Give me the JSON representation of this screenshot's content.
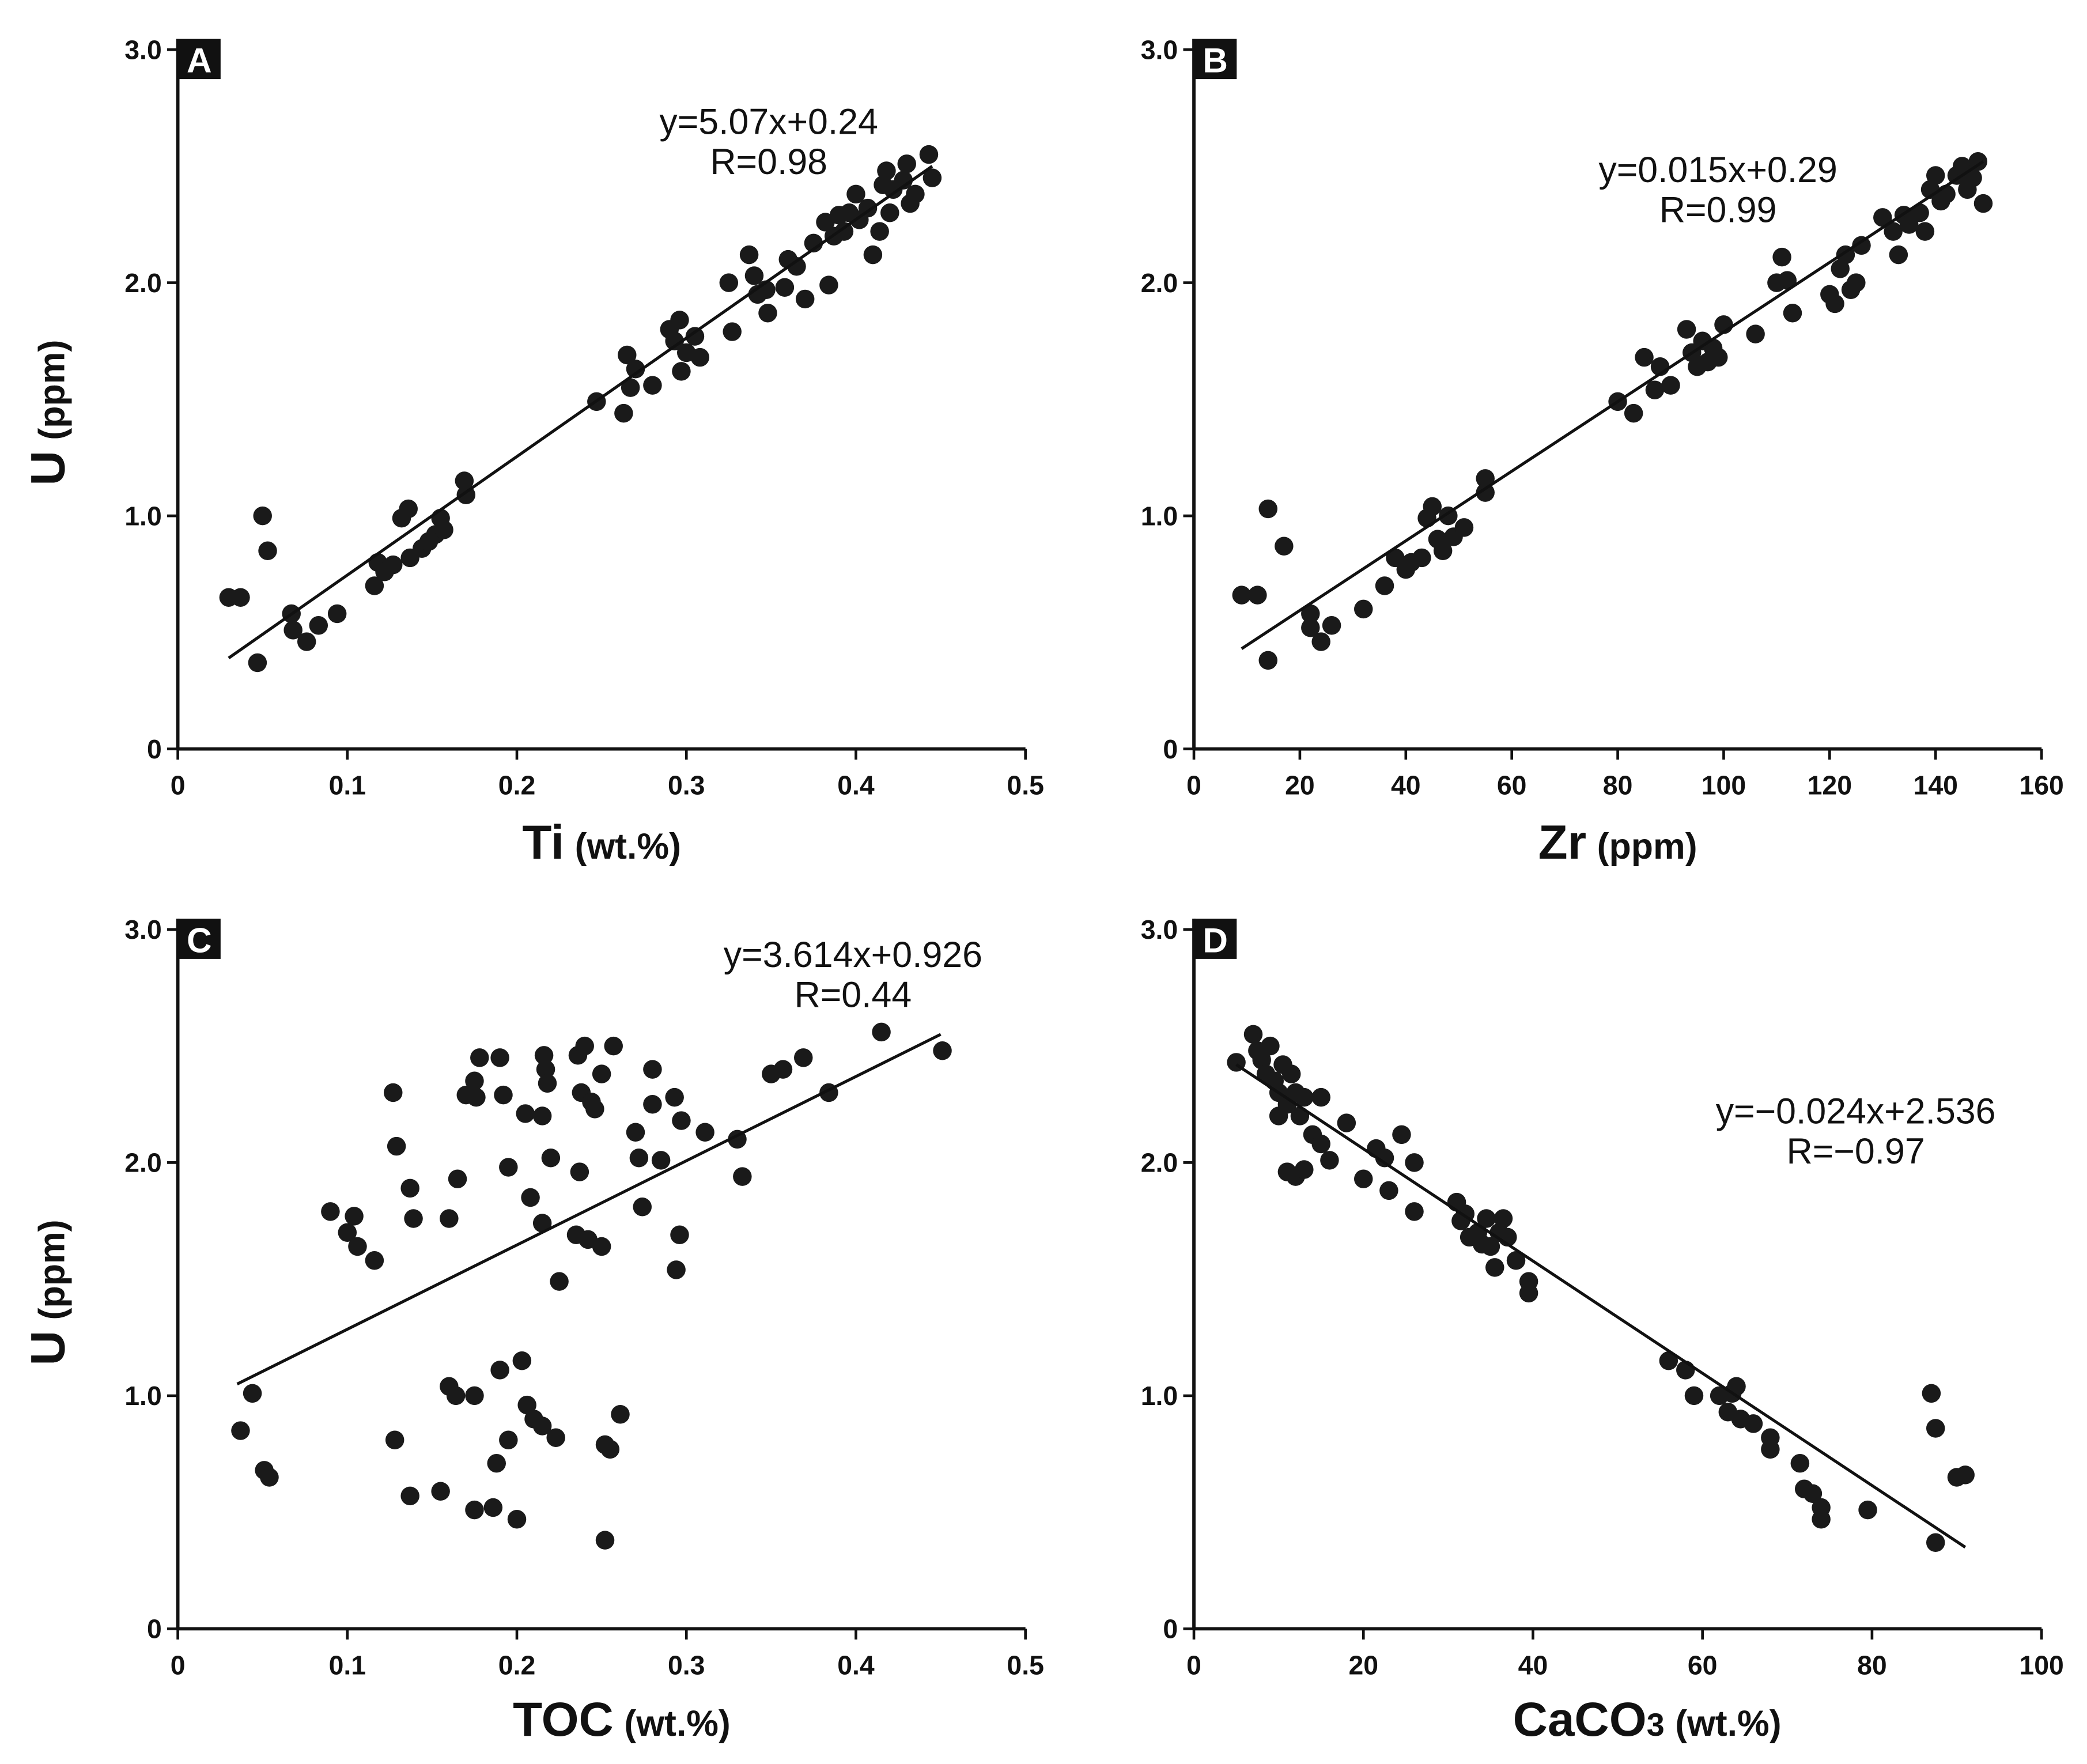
{
  "chart_data": [
    {
      "type": "scatter",
      "panel": "A",
      "xlabel": "Ti",
      "xlabel_unit": "(wt.%)",
      "ylabel": "U",
      "ylabel_unit": "(ppm)",
      "equation": "y=5.07x+0.24",
      "r_label": "R=0.98",
      "color": "#1a1a1a",
      "xlim": [
        0,
        0.5
      ],
      "ylim": [
        0,
        3
      ],
      "xticks": [
        0,
        0.1,
        0.2,
        0.3,
        0.4,
        0.5
      ],
      "yticks": [
        0,
        {
          "value": 1,
          "label": "1.0"
        },
        {
          "value": 2,
          "label": "2.0"
        },
        {
          "value": 3,
          "label": "3.0"
        }
      ],
      "fit_line": {
        "x": [
          0.03,
          0.445
        ],
        "y": [
          0.39,
          2.5
        ]
      },
      "x": [
        0.03,
        0.037,
        0.047,
        0.05,
        0.053,
        0.067,
        0.068,
        0.076,
        0.083,
        0.094,
        0.116,
        0.118,
        0.122,
        0.127,
        0.132,
        0.136,
        0.137,
        0.144,
        0.148,
        0.152,
        0.155,
        0.157,
        0.169,
        0.17,
        0.247,
        0.263,
        0.265,
        0.267,
        0.27,
        0.28,
        0.29,
        0.293,
        0.296,
        0.297,
        0.3,
        0.305,
        0.308,
        0.325,
        0.327,
        0.337,
        0.34,
        0.342,
        0.347,
        0.348,
        0.358,
        0.36,
        0.365,
        0.37,
        0.375,
        0.382,
        0.384,
        0.387,
        0.39,
        0.393,
        0.396,
        0.4,
        0.402,
        0.407,
        0.41,
        0.414,
        0.416,
        0.418,
        0.42,
        0.422,
        0.428,
        0.43,
        0.432,
        0.435,
        0.443,
        0.445
      ],
      "y": [
        0.65,
        0.65,
        0.37,
        1.0,
        0.85,
        0.58,
        0.51,
        0.46,
        0.53,
        0.58,
        0.7,
        0.8,
        0.76,
        0.79,
        0.99,
        1.03,
        0.82,
        0.86,
        0.89,
        0.92,
        0.99,
        0.94,
        1.15,
        1.09,
        1.49,
        1.44,
        1.69,
        1.55,
        1.63,
        1.56,
        1.8,
        1.75,
        1.84,
        1.62,
        1.7,
        1.77,
        1.68,
        2.0,
        1.79,
        2.12,
        2.03,
        1.95,
        1.97,
        1.87,
        1.98,
        2.1,
        2.07,
        1.93,
        2.17,
        2.26,
        1.99,
        2.2,
        2.29,
        2.22,
        2.3,
        2.38,
        2.27,
        2.32,
        2.12,
        2.22,
        2.42,
        2.48,
        2.3,
        2.4,
        2.44,
        2.51,
        2.34,
        2.38,
        2.55,
        2.45
      ]
    },
    {
      "type": "scatter",
      "panel": "B",
      "xlabel": "Zr",
      "xlabel_unit": "(ppm)",
      "ylabel": "U",
      "ylabel_unit": "(ppm)",
      "equation": "y=0.015x+0.29",
      "r_label": "R=0.99",
      "color": "#1a1a1a",
      "xlim": [
        0,
        160
      ],
      "ylim": [
        0,
        3
      ],
      "xticks": [
        0,
        20,
        40,
        60,
        80,
        100,
        120,
        140,
        160
      ],
      "yticks": [
        0,
        {
          "value": 1,
          "label": "1.0"
        },
        {
          "value": 2,
          "label": "2.0"
        },
        {
          "value": 3,
          "label": "3.0"
        }
      ],
      "fit_line": {
        "x": [
          9,
          149
        ],
        "y": [
          0.43,
          2.52
        ]
      },
      "x": [
        9,
        12,
        14,
        14,
        17,
        22,
        22,
        24,
        26,
        32,
        36,
        38,
        40,
        41,
        43,
        44,
        45,
        46,
        47,
        48,
        49,
        51,
        55,
        55,
        80,
        83,
        85,
        87,
        88,
        90,
        93,
        94,
        95,
        96,
        97,
        98,
        99,
        100,
        106,
        110,
        111,
        112,
        113,
        120,
        121,
        122,
        123,
        124,
        125,
        126,
        130,
        132,
        133,
        134,
        135,
        137,
        138,
        139,
        140,
        141,
        142,
        144,
        145,
        146,
        147,
        148,
        149
      ],
      "y": [
        0.66,
        0.66,
        1.03,
        0.38,
        0.87,
        0.58,
        0.52,
        0.46,
        0.53,
        0.6,
        0.7,
        0.82,
        0.77,
        0.8,
        0.82,
        0.99,
        1.04,
        0.9,
        0.85,
        1.0,
        0.91,
        0.95,
        1.16,
        1.1,
        1.49,
        1.44,
        1.68,
        1.54,
        1.64,
        1.56,
        1.8,
        1.7,
        1.64,
        1.75,
        1.66,
        1.72,
        1.68,
        1.82,
        1.78,
        2.0,
        2.11,
        2.01,
        1.87,
        1.95,
        1.91,
        2.06,
        2.12,
        1.97,
        2.0,
        2.16,
        2.28,
        2.22,
        2.12,
        2.29,
        2.25,
        2.3,
        2.22,
        2.4,
        2.46,
        2.35,
        2.38,
        2.46,
        2.5,
        2.4,
        2.45,
        2.52,
        2.34
      ]
    },
    {
      "type": "scatter",
      "panel": "C",
      "xlabel": "TOC",
      "xlabel_unit": "(wt.%)",
      "ylabel": "U",
      "ylabel_unit": "(ppm)",
      "equation": "y=3.614x+0.926",
      "r_label": "R=0.44",
      "color": "#1a1a1a",
      "xlim": [
        0,
        0.5
      ],
      "ylim": [
        0,
        3
      ],
      "xticks": [
        0,
        0.1,
        0.2,
        0.3,
        0.4,
        0.5
      ],
      "yticks": [
        0,
        {
          "value": 1,
          "label": "1.0"
        },
        {
          "value": 2,
          "label": "2.0"
        },
        {
          "value": 3,
          "label": "3.0"
        }
      ],
      "fit_line": {
        "x": [
          0.035,
          0.45
        ],
        "y": [
          1.05,
          2.55
        ]
      },
      "x": [
        0.037,
        0.044,
        0.051,
        0.054,
        0.09,
        0.1,
        0.104,
        0.106,
        0.116,
        0.127,
        0.129,
        0.128,
        0.137,
        0.139,
        0.137,
        0.155,
        0.16,
        0.16,
        0.164,
        0.165,
        0.17,
        0.175,
        0.176,
        0.175,
        0.175,
        0.178,
        0.186,
        0.188,
        0.19,
        0.19,
        0.192,
        0.195,
        0.195,
        0.2,
        0.203,
        0.205,
        0.206,
        0.208,
        0.21,
        0.215,
        0.215,
        0.215,
        0.216,
        0.217,
        0.218,
        0.22,
        0.223,
        0.225,
        0.235,
        0.236,
        0.237,
        0.238,
        0.24,
        0.242,
        0.244,
        0.246,
        0.25,
        0.25,
        0.252,
        0.252,
        0.255,
        0.257,
        0.261,
        0.27,
        0.272,
        0.274,
        0.28,
        0.28,
        0.285,
        0.293,
        0.294,
        0.296,
        0.297,
        0.311,
        0.33,
        0.333,
        0.35,
        0.357,
        0.369,
        0.384,
        0.415,
        0.451
      ],
      "y": [
        0.85,
        1.01,
        0.68,
        0.65,
        1.79,
        1.7,
        1.77,
        1.64,
        1.58,
        2.3,
        2.07,
        0.81,
        1.89,
        1.76,
        0.57,
        0.59,
        1.76,
        1.04,
        1.0,
        1.93,
        2.29,
        2.35,
        2.28,
        1.0,
        0.51,
        2.45,
        0.52,
        0.71,
        2.45,
        1.11,
        2.29,
        0.81,
        1.98,
        0.47,
        1.15,
        2.21,
        0.96,
        1.85,
        0.9,
        0.87,
        2.2,
        1.74,
        2.46,
        2.4,
        2.34,
        2.02,
        0.82,
        1.49,
        1.69,
        2.46,
        1.96,
        2.3,
        2.5,
        1.67,
        2.26,
        2.23,
        2.38,
        1.64,
        0.79,
        0.38,
        0.77,
        2.5,
        0.92,
        2.13,
        2.02,
        1.81,
        2.25,
        2.4,
        2.01,
        2.28,
        1.54,
        1.69,
        2.18,
        2.13,
        2.1,
        1.94,
        2.38,
        2.4,
        2.45,
        2.3,
        2.56,
        2.48
      ]
    },
    {
      "type": "scatter",
      "panel": "D",
      "xlabel": "CaCO",
      "xlabel_sub": "3",
      "xlabel_unit": "(wt.%)",
      "ylabel": "U",
      "ylabel_unit": "(ppm)",
      "equation": "y=−0.024x+2.536",
      "r_label": "R=−0.97",
      "color": "#1a1a1a",
      "xlim": [
        0,
        100
      ],
      "ylim": [
        0,
        3
      ],
      "xticks": [
        0,
        20,
        40,
        60,
        80,
        100
      ],
      "yticks": [
        0,
        {
          "value": 1,
          "label": "1.0"
        },
        {
          "value": 2,
          "label": "2.0"
        },
        {
          "value": 3,
          "label": "3.0"
        }
      ],
      "fit_line": {
        "x": [
          5,
          91
        ],
        "y": [
          2.42,
          0.35
        ]
      },
      "x": [
        5,
        7,
        7.5,
        8,
        8.5,
        9,
        9.5,
        10,
        10,
        10.5,
        11,
        11,
        11.5,
        12,
        12,
        12.5,
        13,
        13,
        14,
        15,
        15,
        16,
        18,
        20,
        21.5,
        22.5,
        23,
        24.5,
        26,
        26,
        31,
        31.5,
        32,
        32.5,
        33.5,
        34,
        34.5,
        35,
        35.5,
        36,
        36.5,
        37,
        38,
        39.5,
        39.5,
        56,
        58,
        59,
        62,
        63,
        63.5,
        64,
        64.5,
        66,
        68,
        68,
        71.5,
        72,
        73,
        74,
        74,
        79.5,
        87,
        87.5,
        87.5,
        90,
        91
      ],
      "y": [
        2.43,
        2.55,
        2.48,
        2.44,
        2.38,
        2.5,
        2.35,
        2.2,
        2.3,
        2.42,
        2.25,
        1.96,
        2.38,
        2.3,
        1.94,
        2.2,
        2.28,
        1.97,
        2.12,
        2.28,
        2.08,
        2.01,
        2.17,
        1.93,
        2.06,
        2.02,
        1.88,
        2.12,
        2.0,
        1.79,
        1.83,
        1.75,
        1.78,
        1.68,
        1.7,
        1.65,
        1.76,
        1.64,
        1.55,
        1.7,
        1.76,
        1.68,
        1.58,
        1.49,
        1.44,
        1.15,
        1.11,
        1.0,
        1.0,
        0.93,
        1.01,
        1.04,
        0.9,
        0.88,
        0.82,
        0.77,
        0.71,
        0.6,
        0.58,
        0.52,
        0.47,
        0.51,
        1.01,
        0.86,
        0.37,
        0.65,
        0.66
      ]
    }
  ]
}
